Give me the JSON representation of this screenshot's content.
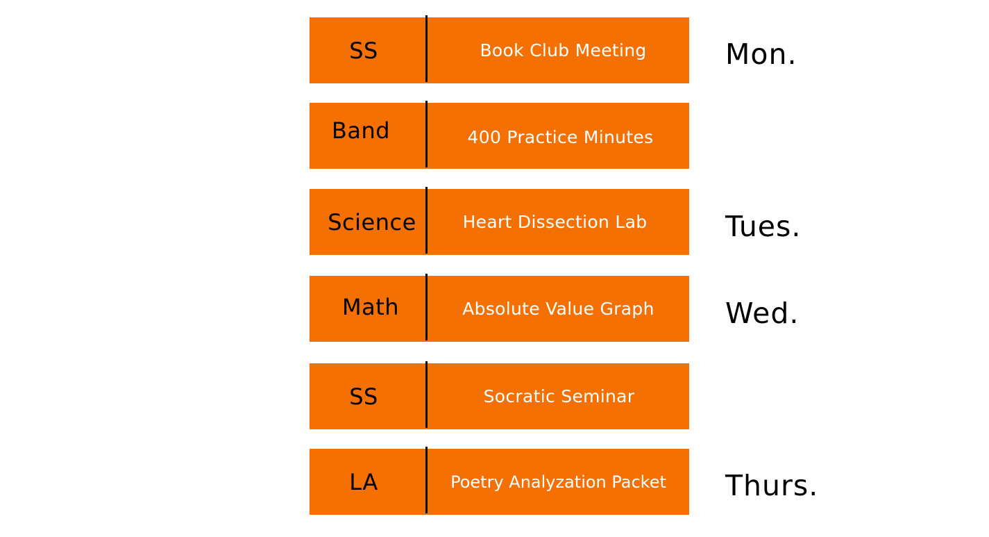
{
  "colors": {
    "block": "#f47003",
    "subject_text": "#000000",
    "task_text": "#ffffff",
    "divider": "#000000",
    "background": "#ffffff"
  },
  "schedule": [
    {
      "subject": "SS",
      "task": "Book Club Meeting"
    },
    {
      "subject": "Band",
      "task": "400 Practice Minutes"
    },
    {
      "subject": "Science",
      "task": "Heart Dissection Lab"
    },
    {
      "subject": "Math",
      "task": "Absolute Value Graph"
    },
    {
      "subject": "SS",
      "task": "Socratic Seminar"
    },
    {
      "subject": "LA",
      "task": "Poetry Analyzation Packet"
    }
  ],
  "days": {
    "mon": "Mon.",
    "tues": "Tues.",
    "wed": "Wed.",
    "thurs": "Thurs."
  }
}
